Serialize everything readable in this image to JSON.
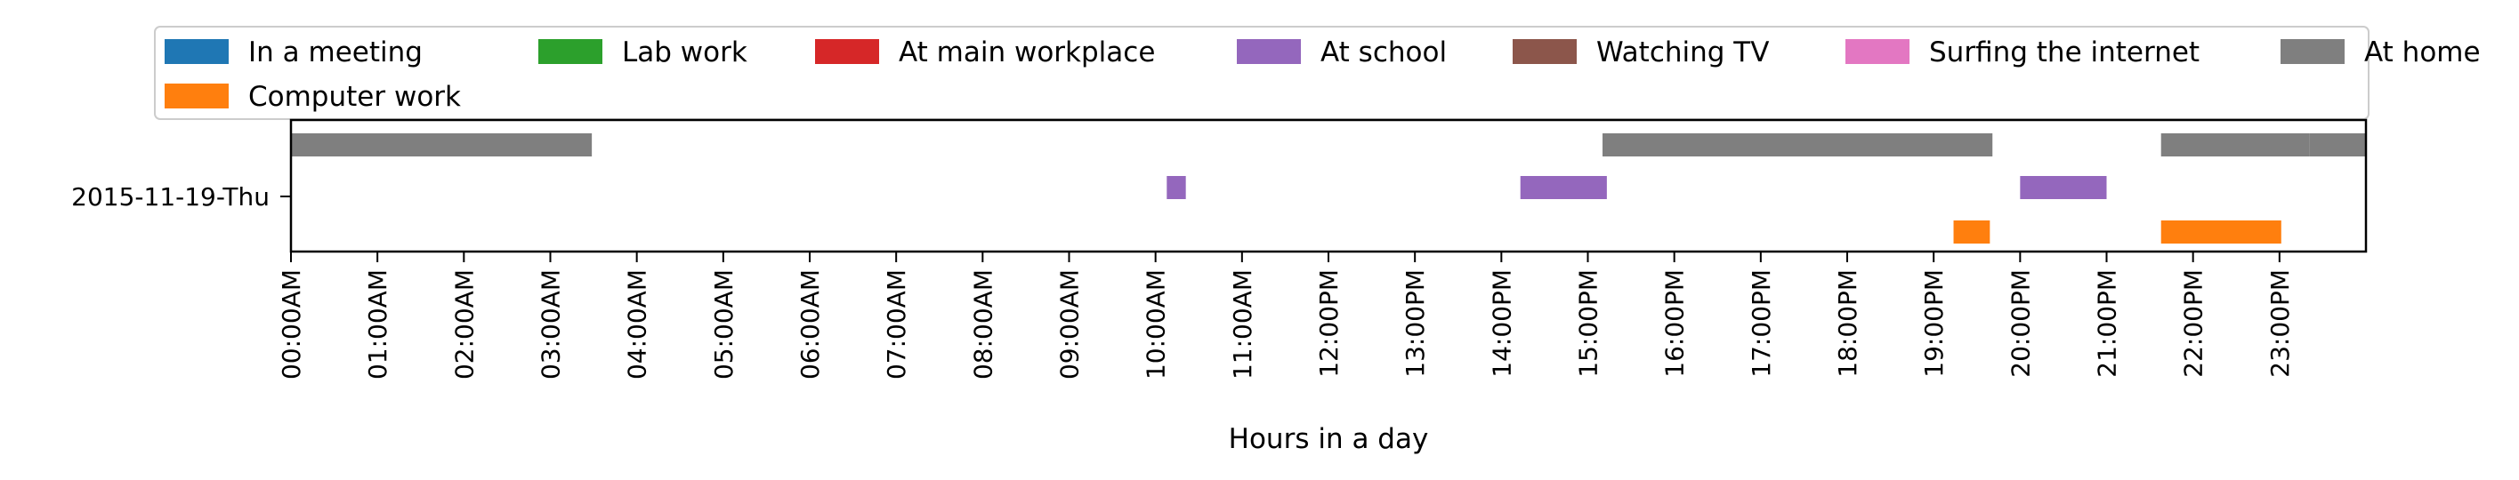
{
  "chart_data": {
    "type": "bar",
    "orientation": "horizontal-timeline",
    "xlabel": "Hours in a day",
    "ylabel": "",
    "xlim": [
      0,
      24
    ],
    "grid": false,
    "legend_placement": "top",
    "categories": [
      "2015-11-19-Thu"
    ],
    "x_tick_labels": [
      "00:00AM",
      "01:00AM",
      "02:00AM",
      "03:00AM",
      "04:00AM",
      "05:00AM",
      "06:00AM",
      "07:00AM",
      "08:00AM",
      "09:00AM",
      "10:00AM",
      "11:00AM",
      "12:00PM",
      "13:00PM",
      "14:00PM",
      "15:00PM",
      "16:00PM",
      "17:00PM",
      "18:00PM",
      "19:00PM",
      "20:00PM",
      "21:00PM",
      "22:00PM",
      "23:00PM"
    ],
    "series": [
      {
        "name": "In a meeting",
        "color": "#1f77b4",
        "intervals": []
      },
      {
        "name": "Lab work",
        "color": "#2ca02c",
        "intervals": []
      },
      {
        "name": "At main workplace",
        "color": "#d62728",
        "intervals": []
      },
      {
        "name": "At school",
        "color": "#9467bd",
        "intervals": [
          [
            10.13,
            10.35
          ],
          [
            14.22,
            15.22
          ],
          [
            20.0,
            21.0
          ]
        ]
      },
      {
        "name": "Watching TV",
        "color": "#8c564b",
        "intervals": []
      },
      {
        "name": "Surfing the internet",
        "color": "#e377c2",
        "intervals": []
      },
      {
        "name": "At home",
        "color": "#7f7f7f",
        "intervals": [
          [
            0.0,
            3.48
          ],
          [
            15.17,
            19.68
          ],
          [
            21.63,
            23.35
          ],
          [
            23.35,
            24.0
          ]
        ]
      },
      {
        "name": "Computer work",
        "color": "#ff7f0e",
        "intervals": [
          [
            19.23,
            19.65
          ],
          [
            21.63,
            23.02
          ]
        ]
      }
    ]
  }
}
